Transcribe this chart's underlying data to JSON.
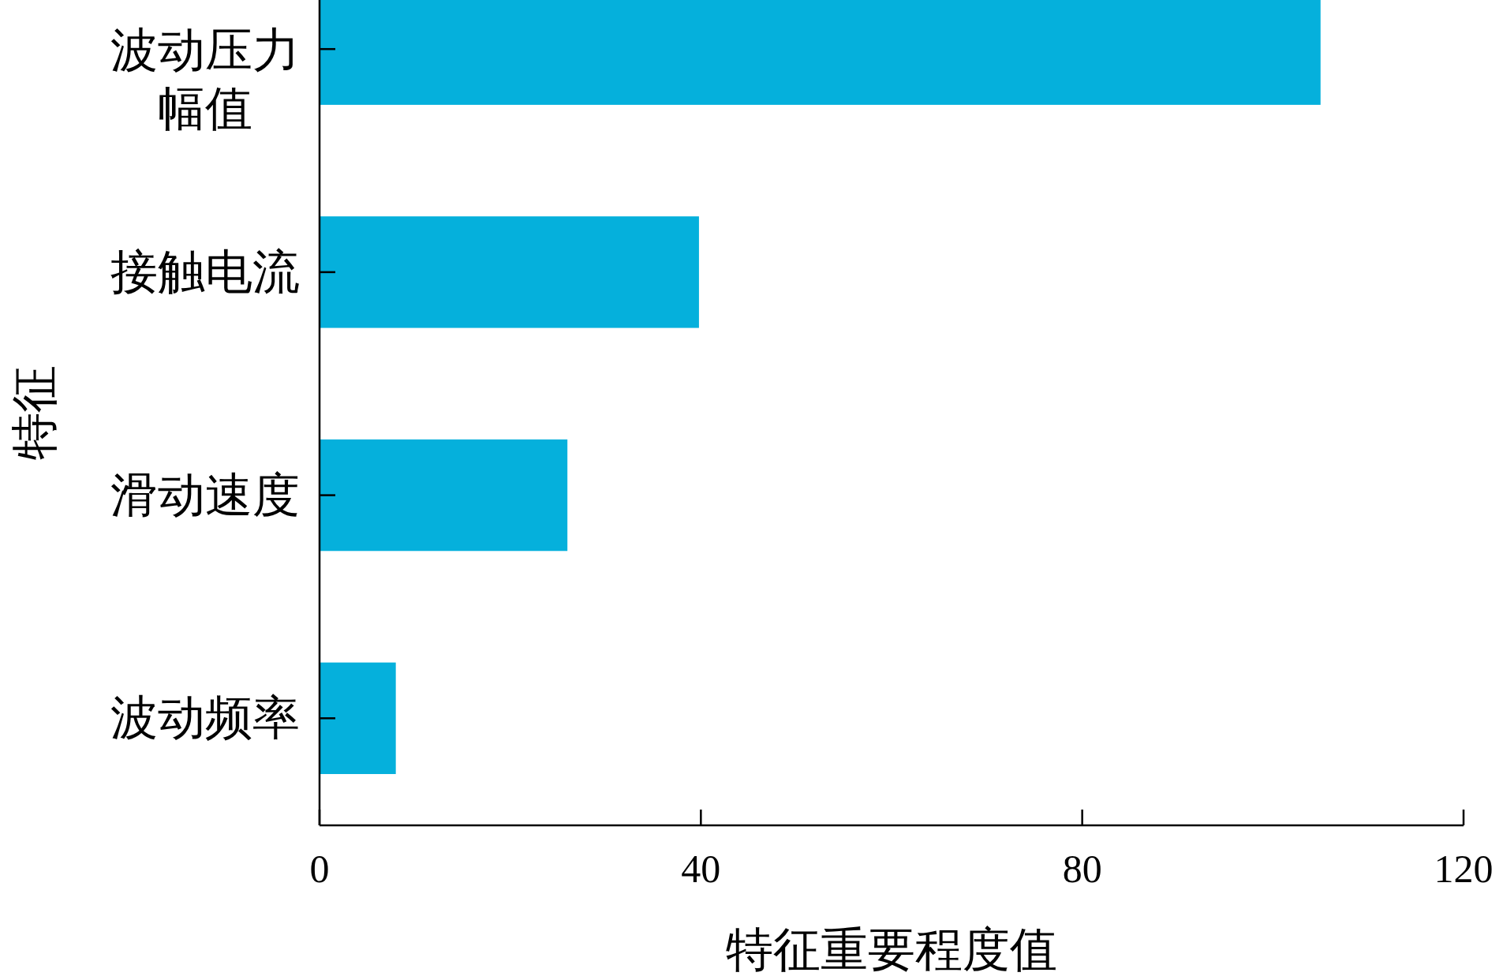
{
  "chart_data": {
    "type": "bar",
    "orientation": "horizontal",
    "categories": [
      "波动压力幅值",
      "接触电流",
      "滑动速度",
      "波动频率"
    ],
    "values": [
      105,
      39.8,
      26,
      8
    ],
    "color": "#05b0dc",
    "xlabel": "特征重要程度值",
    "ylabel": "特征",
    "xlim": [
      0,
      120
    ],
    "xticks": [
      0,
      40,
      80,
      120
    ],
    "grid": false
  }
}
